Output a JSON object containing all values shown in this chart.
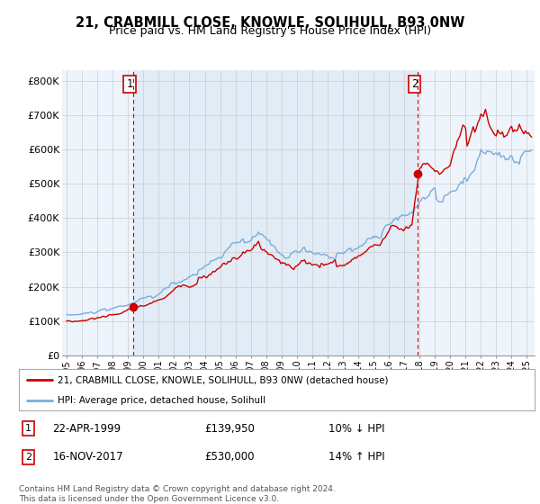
{
  "title": "21, CRABMILL CLOSE, KNOWLE, SOLIHULL, B93 0NW",
  "subtitle": "Price paid vs. HM Land Registry's House Price Index (HPI)",
  "title_fontsize": 10.5,
  "subtitle_fontsize": 9,
  "legend_label_red": "21, CRABMILL CLOSE, KNOWLE, SOLIHULL, B93 0NW (detached house)",
  "legend_label_blue": "HPI: Average price, detached house, Solihull",
  "footer": "Contains HM Land Registry data © Crown copyright and database right 2024.\nThis data is licensed under the Open Government Licence v3.0.",
  "annotation1_label": "1",
  "annotation1_date": "22-APR-1999",
  "annotation1_price": "£139,950",
  "annotation1_hpi": "10% ↓ HPI",
  "annotation2_label": "2",
  "annotation2_date": "16-NOV-2017",
  "annotation2_price": "£530,000",
  "annotation2_hpi": "14% ↑ HPI",
  "red_color": "#cc0000",
  "blue_color": "#7aaddb",
  "shade_color": "#dce9f5",
  "grid_color": "#cccccc",
  "background_color": "#ffffff",
  "plot_bg_color": "#eef4fb",
  "ylim": [
    0,
    830000
  ],
  "yticks": [
    0,
    100000,
    200000,
    300000,
    400000,
    500000,
    600000,
    700000,
    800000
  ],
  "ytick_labels": [
    "£0",
    "£100K",
    "£200K",
    "£300K",
    "£400K",
    "£500K",
    "£600K",
    "£700K",
    "£800K"
  ],
  "sale1_x": 1999.31,
  "sale1_y": 139950,
  "sale2_x": 2017.88,
  "sale2_y": 530000,
  "xlim_left": 1994.7,
  "xlim_right": 2025.5
}
